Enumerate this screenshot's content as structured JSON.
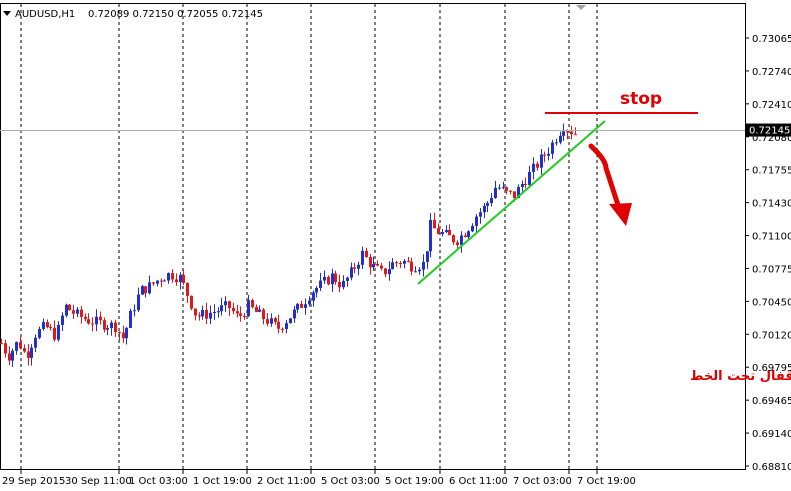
{
  "header": {
    "symbol": "AUDUSD,H1",
    "ohlc": "0.72089 0.72150 0.72055 0.72145",
    "menu_arrow_icon": "triangle-down-icon"
  },
  "annotations": {
    "stop_label": "stop",
    "note": "بيع بعد الاقفال تحت الخط"
  },
  "colors": {
    "bull": "#1f2fd0",
    "bear": "#e01818",
    "trendline": "#22cc22",
    "stopline": "#e00000",
    "annotation": "#e00000",
    "price_box": "#000000",
    "grid": "#000000"
  },
  "chart_data": {
    "type": "candlestick",
    "symbol": "AUDUSD",
    "timeframe": "H1",
    "current_price": "0.72145",
    "ylim": [
      0.688,
      0.733
    ],
    "y_ticks": [
      "0.73065",
      "0.72740",
      "0.72410",
      "0.72080",
      "0.71755",
      "0.71430",
      "0.71100",
      "0.70775",
      "0.70450",
      "0.70120",
      "0.69795",
      "0.69465",
      "0.69140",
      "0.68810"
    ],
    "x_ticks": [
      "29 Sep 2015",
      "30 Sep 11:00",
      "1 Oct 03:00",
      "1 Oct 19:00",
      "2 Oct 11:00",
      "5 Oct 03:00",
      "5 Oct 19:00",
      "6 Oct 11:00",
      "7 Oct 03:00",
      "7 Oct 19:00"
    ],
    "grid": "vertical dashed",
    "path": [
      [
        0,
        0.7005
      ],
      [
        8,
        0.699
      ],
      [
        18,
        0.7005
      ],
      [
        26,
        0.699
      ],
      [
        35,
        0.7012
      ],
      [
        45,
        0.702
      ],
      [
        56,
        0.701
      ],
      [
        65,
        0.704
      ],
      [
        75,
        0.7032
      ],
      [
        90,
        0.7025
      ],
      [
        105,
        0.7022
      ],
      [
        115,
        0.702
      ],
      [
        123,
        0.7008
      ],
      [
        130,
        0.703
      ],
      [
        140,
        0.7055
      ],
      [
        150,
        0.706
      ],
      [
        160,
        0.7068
      ],
      [
        170,
        0.7072
      ],
      [
        180,
        0.7068
      ],
      [
        188,
        0.705
      ],
      [
        196,
        0.703
      ],
      [
        206,
        0.7032
      ],
      [
        218,
        0.7036
      ],
      [
        228,
        0.704
      ],
      [
        238,
        0.7028
      ],
      [
        248,
        0.704
      ],
      [
        258,
        0.7032
      ],
      [
        268,
        0.7025
      ],
      [
        278,
        0.7018
      ],
      [
        290,
        0.703
      ],
      [
        300,
        0.704
      ],
      [
        312,
        0.7055
      ],
      [
        322,
        0.7062
      ],
      [
        332,
        0.707
      ],
      [
        342,
        0.706
      ],
      [
        352,
        0.7075
      ],
      [
        362,
        0.7092
      ],
      [
        372,
        0.708
      ],
      [
        382,
        0.7072
      ],
      [
        392,
        0.7082
      ],
      [
        402,
        0.7085
      ],
      [
        412,
        0.708
      ],
      [
        424,
        0.7082
      ],
      [
        430,
        0.712
      ],
      [
        436,
        0.7115
      ],
      [
        446,
        0.711
      ],
      [
        456,
        0.7105
      ],
      [
        466,
        0.7115
      ],
      [
        476,
        0.713
      ],
      [
        486,
        0.714
      ],
      [
        496,
        0.716
      ],
      [
        506,
        0.7152
      ],
      [
        514,
        0.715
      ],
      [
        522,
        0.7162
      ],
      [
        530,
        0.7172
      ],
      [
        540,
        0.7185
      ],
      [
        548,
        0.7195
      ],
      [
        556,
        0.7208
      ],
      [
        563,
        0.722
      ],
      [
        569,
        0.7215
      ],
      [
        575,
        0.7212
      ],
      [
        578,
        0.72145
      ]
    ],
    "trendline": [
      [
        418,
        0.7062
      ],
      [
        605,
        0.7224
      ]
    ],
    "stop_level": 0.7232,
    "stop_segment_x": [
      545,
      698
    ]
  }
}
